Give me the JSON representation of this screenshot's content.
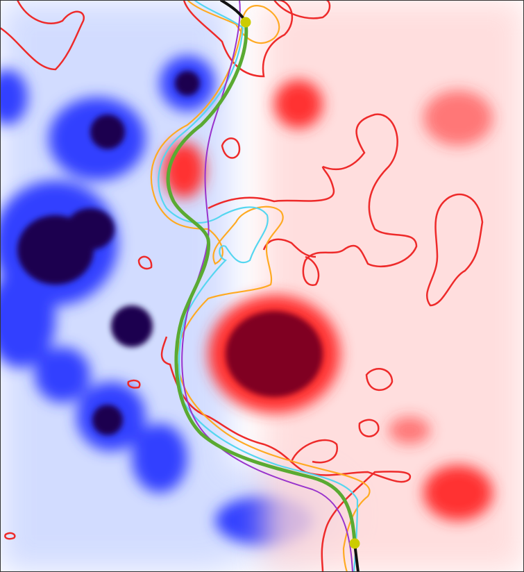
{
  "field": {
    "negative_color": "#0000ff",
    "negative_deep_color": "#1a0050",
    "positive_color": "#ff0000",
    "positive_deep_color": "#800020",
    "background_color": "#ffffff"
  },
  "contours": {
    "red_color": "#ee2a2a",
    "orange_color": "#ffaa22",
    "cyan_color": "#55d6f0"
  },
  "paths": {
    "green_color": "#5aaa32",
    "purple_color": "#9933cc",
    "black_color": "#111111",
    "endpoint_color": "#cccc00"
  }
}
